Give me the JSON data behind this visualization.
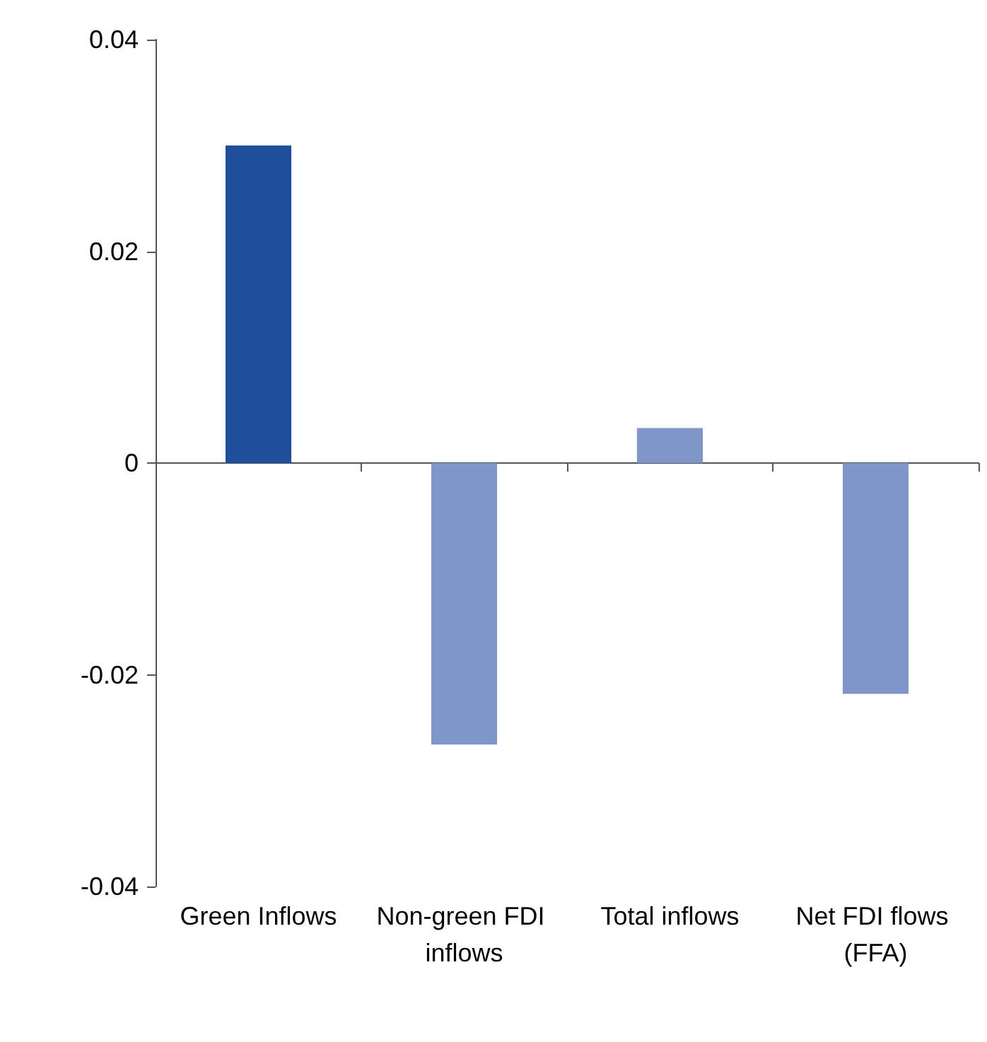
{
  "chart_data": {
    "type": "bar",
    "categories": [
      "Green Inflows",
      "Non-green FDI inflows",
      "Total inflows",
      "Net FDI flows (FFA)"
    ],
    "values": [
      0.03,
      -0.0266,
      0.0033,
      -0.0218
    ],
    "colors": [
      "#1f4e9c",
      "#8196c8",
      "#8196c8",
      "#8196c8"
    ],
    "ylim": [
      -0.04,
      0.04
    ],
    "yticks": [
      -0.04,
      -0.02,
      0,
      0.02,
      0.04
    ]
  }
}
